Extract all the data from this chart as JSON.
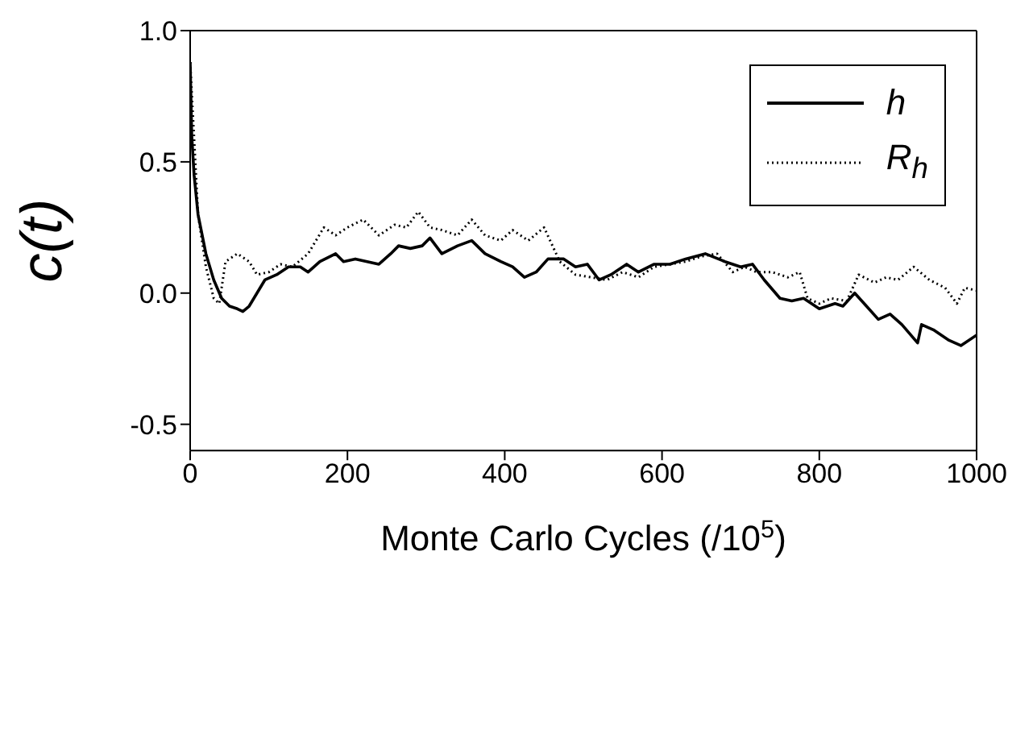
{
  "chart_data": {
    "type": "line",
    "xlabel": "Monte Carlo Cycles (/10$^{5}$)",
    "ylabel": "c(t)",
    "xlim": [
      0,
      1000
    ],
    "xticks": [
      0,
      200,
      400,
      600,
      800,
      1000
    ],
    "ylim": [
      -0.6,
      1.0
    ],
    "yticks": [
      -0.5,
      {
        "value": 0,
        "label": "0.0"
      },
      0.5,
      {
        "value": 1,
        "label": "1.0"
      }
    ],
    "legend": "top right",
    "marker": "none",
    "series": [
      {
        "name": "h",
        "color": "#000000",
        "line_style": "solid",
        "x": [
          0,
          2,
          5,
          10,
          20,
          30,
          40,
          50,
          60,
          67,
          75,
          85,
          95,
          110,
          125,
          140,
          150,
          165,
          185,
          195,
          210,
          225,
          240,
          255,
          265,
          280,
          295,
          305,
          320,
          340,
          358,
          375,
          395,
          410,
          425,
          440,
          455,
          475,
          490,
          505,
          520,
          535,
          555,
          570,
          590,
          610,
          630,
          655,
          680,
          700,
          715,
          730,
          750,
          765,
          780,
          800,
          820,
          830,
          845,
          860,
          875,
          890,
          905,
          925,
          930,
          945,
          965,
          980,
          1000
        ],
        "values": [
          0.88,
          0.6,
          0.45,
          0.3,
          0.15,
          0.05,
          -0.02,
          -0.05,
          -0.06,
          -0.07,
          -0.05,
          0.0,
          0.05,
          0.07,
          0.1,
          0.1,
          0.08,
          0.12,
          0.15,
          0.12,
          0.13,
          0.12,
          0.11,
          0.15,
          0.18,
          0.17,
          0.18,
          0.21,
          0.15,
          0.18,
          0.2,
          0.15,
          0.12,
          0.1,
          0.06,
          0.08,
          0.13,
          0.13,
          0.1,
          0.11,
          0.05,
          0.07,
          0.11,
          0.08,
          0.11,
          0.11,
          0.13,
          0.15,
          0.12,
          0.1,
          0.11,
          0.05,
          -0.02,
          -0.03,
          -0.02,
          -0.06,
          -0.04,
          -0.05,
          0.0,
          -0.05,
          -0.1,
          -0.08,
          -0.12,
          -0.19,
          -0.12,
          -0.14,
          -0.18,
          -0.2,
          -0.16
        ]
      },
      {
        "name": "R$_{h}$",
        "color": "#000000",
        "line_style": "dotted",
        "x": [
          0,
          10,
          20,
          30,
          37,
          45,
          60,
          75,
          85,
          100,
          115,
          130,
          150,
          170,
          185,
          200,
          220,
          240,
          260,
          275,
          290,
          305,
          320,
          340,
          358,
          375,
          395,
          410,
          430,
          450,
          470,
          490,
          510,
          530,
          550,
          570,
          590,
          610,
          630,
          650,
          670,
          690,
          705,
          720,
          740,
          760,
          775,
          785,
          800,
          815,
          835,
          850,
          870,
          885,
          900,
          920,
          940,
          960,
          975,
          985,
          1000
        ],
        "values": [
          0.88,
          0.3,
          0.1,
          -0.02,
          -0.04,
          0.12,
          0.15,
          0.12,
          0.07,
          0.08,
          0.11,
          0.1,
          0.15,
          0.25,
          0.22,
          0.25,
          0.28,
          0.22,
          0.26,
          0.25,
          0.31,
          0.25,
          0.24,
          0.22,
          0.28,
          0.22,
          0.2,
          0.24,
          0.2,
          0.25,
          0.12,
          0.07,
          0.06,
          0.05,
          0.08,
          0.06,
          0.1,
          0.11,
          0.12,
          0.14,
          0.15,
          0.08,
          0.1,
          0.08,
          0.08,
          0.06,
          0.08,
          -0.02,
          -0.04,
          -0.02,
          -0.03,
          0.07,
          0.04,
          0.06,
          0.05,
          0.1,
          0.05,
          0.02,
          -0.04,
          0.02,
          0.01
        ]
      }
    ]
  }
}
